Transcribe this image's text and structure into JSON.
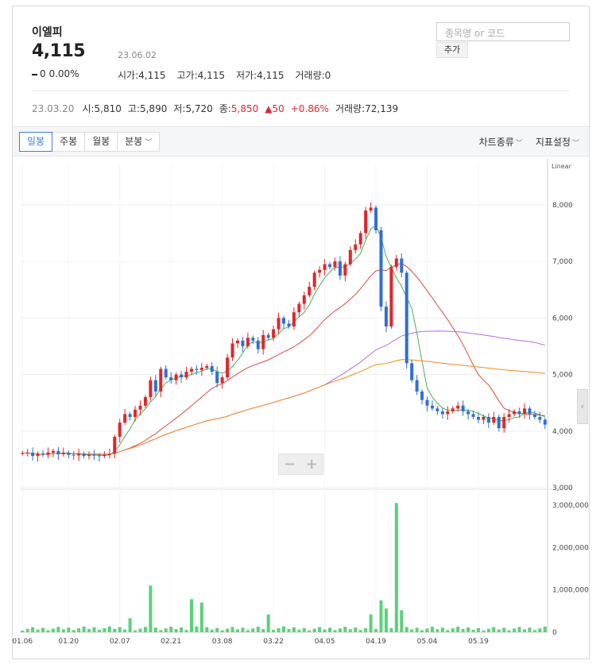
{
  "header": {
    "name": "이엘피",
    "price": "4,115",
    "change_value": "0",
    "change_pct": "0.00%",
    "date": "23.06.02",
    "open_label": "시가",
    "open": "4,115",
    "high_label": "고가",
    "high": "4,115",
    "low_label": "저가",
    "low": "4,115",
    "volume_label": "거래량",
    "volume": "0"
  },
  "search": {
    "placeholder": "종목명 or 코드",
    "add_label": "추가"
  },
  "prev_session": {
    "date": "23.03.20",
    "open_label": "시",
    "open": "5,810",
    "high_label": "고",
    "high": "5,890",
    "low_label": "저",
    "low": "5,720",
    "close_label": "종",
    "close": "5,850",
    "change_arrow": "▲",
    "change": "50",
    "change_pct": "+0.86%",
    "volume_label": "거래량",
    "volume": "72,139"
  },
  "toolbar": {
    "tabs": [
      "일봉",
      "주봉",
      "월봉",
      "분봉"
    ],
    "active_tab": "일봉",
    "chart_type_label": "차트종류",
    "indicator_label": "지표설정"
  },
  "zoom": {
    "minus": "−",
    "plus": "+"
  },
  "colors": {
    "up": "#e0262b",
    "down": "#2f6fd6",
    "ma5": "#4caf50",
    "ma20": "#e0493c",
    "ma60": "#b06ee8",
    "ma120": "#f08c1c",
    "volume": "#5cd17a"
  },
  "chart_data": {
    "type": "candlestick",
    "scale_label": "Linear",
    "price_axis": {
      "ticks": [
        3000,
        4000,
        5000,
        6000,
        7000,
        8000
      ],
      "tick_labels": [
        "3,000",
        "4,000",
        "5,000",
        "6,000",
        "7,000",
        "8,000"
      ],
      "ylim": [
        3000,
        8700
      ]
    },
    "volume_axis": {
      "ticks": [
        0,
        1000000,
        2000000,
        3000000
      ],
      "tick_labels": [
        "0",
        "1,000,000",
        "2,000,000",
        "3,000,000"
      ],
      "ylim": [
        0,
        3300000
      ]
    },
    "x_labels": [
      "01.06",
      "01.20",
      "02.07",
      "02.21",
      "03.08",
      "03.22",
      "04.05",
      "04.19",
      "05.04",
      "05.19"
    ],
    "x_label_index": [
      0,
      9,
      19,
      29,
      39,
      49,
      59,
      69,
      79,
      89
    ],
    "closes": [
      3610,
      3620,
      3560,
      3600,
      3580,
      3620,
      3650,
      3590,
      3620,
      3580,
      3570,
      3600,
      3560,
      3580,
      3570,
      3560,
      3580,
      3600,
      3900,
      4150,
      4300,
      4250,
      4380,
      4450,
      4600,
      4900,
      4700,
      5100,
      4950,
      4900,
      5000,
      4950,
      5050,
      5100,
      5080,
      5120,
      5150,
      5050,
      4850,
      4950,
      5300,
      5550,
      5600,
      5500,
      5650,
      5600,
      5450,
      5700,
      5650,
      5800,
      6000,
      5900,
      5850,
      6100,
      6250,
      6400,
      6550,
      6800,
      6850,
      6950,
      6900,
      7000,
      6750,
      6950,
      7200,
      7300,
      7500,
      7900,
      7950,
      7550,
      6200,
      5850,
      6900,
      7050,
      6800,
      5200,
      4900,
      4700,
      4550,
      4450,
      4400,
      4350,
      4300,
      4350,
      4400,
      4450,
      4350,
      4300,
      4250,
      4200,
      4250,
      4150,
      4250,
      4050,
      4250,
      4300,
      4350,
      4300,
      4400,
      4300,
      4250,
      4200,
      4115
    ],
    "ma_lines": [
      {
        "name": "MA5",
        "color": "#4caf50"
      },
      {
        "name": "MA20",
        "color": "#e0493c"
      },
      {
        "name": "MA60",
        "color": "#b06ee8"
      },
      {
        "name": "MA120",
        "color": "#f08c1c"
      }
    ],
    "volume_spikes": {
      "25": 1100000,
      "33": 780000,
      "35": 700000,
      "48": 420000,
      "70": 750000,
      "71": 560000,
      "73": 3050000,
      "74": 520000,
      "21": 330000,
      "68": 420000
    }
  }
}
